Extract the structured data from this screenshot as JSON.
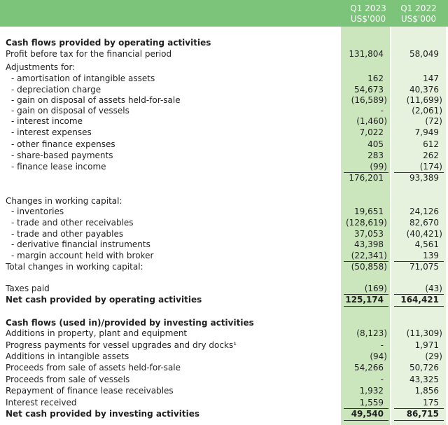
{
  "header": {
    "columns": [
      {
        "period": "Q1 2023",
        "unit": "US$'000"
      },
      {
        "period": "Q1 2022",
        "unit": "US$'000"
      }
    ]
  },
  "table": {
    "rows": [
      [
        "Cash flows provided by operating activities"
      ],
      [
        "Profit before tax for the financial period",
        "131,804",
        "58,049"
      ],
      [
        "Adjustments for:"
      ],
      [
        "- amortisation of intangible assets",
        "162",
        "147"
      ],
      [
        "- depreciation charge",
        "54,673",
        "40,376"
      ],
      [
        "- gain on disposal of assets held-for-sale",
        "(16,589)",
        "(11,699)"
      ],
      [
        "- gain on disposal of vessels",
        "-",
        "(2,061)"
      ],
      [
        "- interest income",
        "(1,460)",
        "(72)"
      ],
      [
        "- interest expenses",
        "7,022",
        "7,949"
      ],
      [
        "- other finance expenses",
        "405",
        "612"
      ],
      [
        "- share-based payments",
        "283",
        "262"
      ],
      [
        "- finance lease income",
        "(99)",
        "(174)"
      ],
      [
        "",
        "176,201",
        "93,389"
      ],
      [
        "Changes in working capital:"
      ],
      [
        "- inventories",
        "19,651",
        "24,126"
      ],
      [
        "- trade and other receivables",
        "(128,619)",
        "82,670"
      ],
      [
        "- trade and other payables",
        "37,053",
        "(40,421)"
      ],
      [
        "- derivative financial instruments",
        "43,398",
        "4,561"
      ],
      [
        "- margin account held with broker",
        "(22,341)",
        "139"
      ],
      [
        "Total changes in working capital:",
        "(50,858)",
        "71,075"
      ],
      [
        "Taxes paid",
        "(169)",
        "(43)"
      ],
      [
        "Net cash provided by operating activities",
        "125,174",
        "164,421"
      ],
      [
        "Cash flows (used in)/provided by investing activities"
      ],
      [
        "Additions in property, plant and equipment",
        "(8,123)",
        "(11,309)"
      ],
      [
        "Progress payments for vessel upgrades and dry docks¹",
        "-",
        "1,971"
      ],
      [
        "Additions in intangible assets",
        "(94)",
        "(29)"
      ],
      [
        "Proceeds from sale of assets held-for-sale",
        "54,266",
        "50,726"
      ],
      [
        "Proceeds from sale of vessels",
        "-",
        "43,325"
      ],
      [
        "Repayment of finance lease receivables",
        "1,932",
        "1,856"
      ],
      [
        "Interest received",
        "1,559",
        "175"
      ],
      [
        "Net cash provided by investing activities",
        "49,540",
        "86,715"
      ]
    ]
  }
}
